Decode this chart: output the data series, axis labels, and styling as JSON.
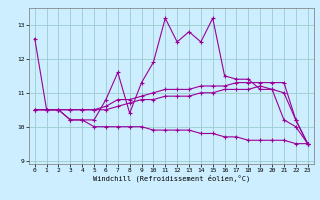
{
  "title": "",
  "xlabel": "Windchill (Refroidissement éolien,°C)",
  "ylabel": "",
  "bg_color": "#cceeff",
  "line_color": "#990099",
  "grid_color": "#99cccc",
  "x": [
    0,
    1,
    2,
    3,
    4,
    5,
    6,
    7,
    8,
    9,
    10,
    11,
    12,
    13,
    14,
    15,
    16,
    17,
    18,
    19,
    20,
    21,
    22,
    23
  ],
  "line1": [
    12.6,
    10.5,
    10.5,
    10.2,
    10.2,
    10.2,
    10.8,
    11.6,
    10.4,
    11.3,
    11.9,
    13.2,
    12.5,
    12.8,
    12.5,
    13.2,
    11.5,
    11.4,
    11.4,
    11.1,
    11.1,
    10.2,
    10.0,
    9.5
  ],
  "line2": [
    10.5,
    10.5,
    10.5,
    10.5,
    10.5,
    10.5,
    10.6,
    10.8,
    10.8,
    10.9,
    11.0,
    11.1,
    11.1,
    11.1,
    11.2,
    11.2,
    11.2,
    11.3,
    11.3,
    11.3,
    11.3,
    11.3,
    10.2,
    9.5
  ],
  "line3": [
    10.5,
    10.5,
    10.5,
    10.5,
    10.5,
    10.5,
    10.5,
    10.6,
    10.7,
    10.8,
    10.8,
    10.9,
    10.9,
    10.9,
    11.0,
    11.0,
    11.1,
    11.1,
    11.1,
    11.2,
    11.1,
    11.0,
    10.2,
    9.5
  ],
  "line4": [
    10.5,
    10.5,
    10.5,
    10.2,
    10.2,
    10.0,
    10.0,
    10.0,
    10.0,
    10.0,
    9.9,
    9.9,
    9.9,
    9.9,
    9.8,
    9.8,
    9.7,
    9.7,
    9.6,
    9.6,
    9.6,
    9.6,
    9.5,
    9.5
  ],
  "ylim": [
    8.9,
    13.5
  ],
  "yticks": [
    9,
    10,
    11,
    12,
    13
  ],
  "xticks": [
    0,
    1,
    2,
    3,
    4,
    5,
    6,
    7,
    8,
    9,
    10,
    11,
    12,
    13,
    14,
    15,
    16,
    17,
    18,
    19,
    20,
    21,
    22,
    23
  ],
  "markersize": 3,
  "linewidth": 0.8
}
